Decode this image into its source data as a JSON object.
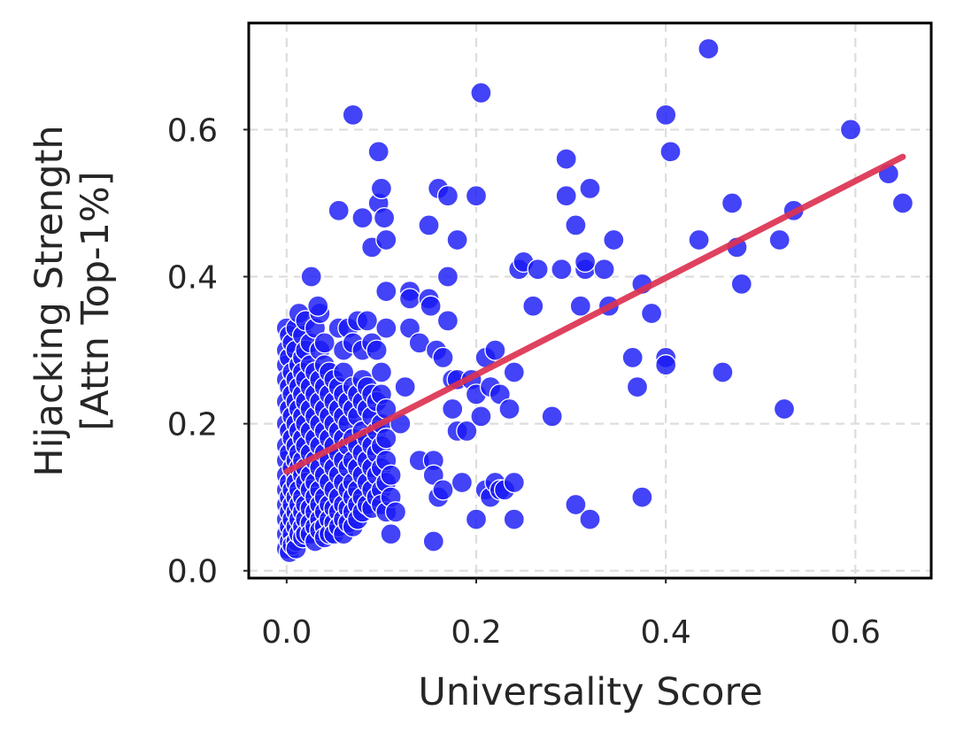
{
  "chart_data": {
    "type": "scatter",
    "xlabel": "Universality Score",
    "ylabel_lines": [
      "Hijacking Strength",
      "[Attn Top-1%]"
    ],
    "xlim": [
      -0.04,
      0.68
    ],
    "ylim": [
      -0.01,
      0.745
    ],
    "xticks": [
      0.0,
      0.2,
      0.4,
      0.6
    ],
    "xtick_labels": [
      "0.0",
      "0.2",
      "0.4",
      "0.6"
    ],
    "yticks": [
      0.0,
      0.2,
      0.4,
      0.6
    ],
    "ytick_labels": [
      "0.0",
      "0.2",
      "0.4",
      "0.6"
    ],
    "grid": true,
    "colors": {
      "points": "#1a1af5",
      "trend": "#dc3250",
      "grid": "#dddddd",
      "frame": "#000000"
    },
    "trendline": {
      "x": [
        0.0,
        0.65
      ],
      "y": [
        0.135,
        0.563
      ]
    },
    "points": [
      [
        0.0,
        0.33
      ],
      [
        0.0,
        0.3
      ],
      [
        0.0,
        0.28
      ],
      [
        0.0,
        0.26
      ],
      [
        0.0,
        0.23
      ],
      [
        0.0,
        0.2
      ],
      [
        0.0,
        0.17
      ],
      [
        0.0,
        0.15
      ],
      [
        0.0,
        0.13
      ],
      [
        0.0,
        0.11
      ],
      [
        0.0,
        0.09
      ],
      [
        0.0,
        0.07
      ],
      [
        0.0,
        0.05
      ],
      [
        0.0,
        0.03
      ],
      [
        0.003,
        0.32
      ],
      [
        0.003,
        0.29
      ],
      [
        0.003,
        0.25
      ],
      [
        0.003,
        0.22
      ],
      [
        0.003,
        0.19
      ],
      [
        0.003,
        0.16
      ],
      [
        0.003,
        0.12
      ],
      [
        0.003,
        0.1
      ],
      [
        0.003,
        0.08
      ],
      [
        0.003,
        0.06
      ],
      [
        0.003,
        0.04
      ],
      [
        0.003,
        0.025
      ],
      [
        0.006,
        0.31
      ],
      [
        0.006,
        0.27
      ],
      [
        0.006,
        0.24
      ],
      [
        0.006,
        0.21
      ],
      [
        0.006,
        0.18
      ],
      [
        0.006,
        0.14
      ],
      [
        0.006,
        0.11
      ],
      [
        0.006,
        0.09
      ],
      [
        0.006,
        0.07
      ],
      [
        0.006,
        0.05
      ],
      [
        0.006,
        0.035
      ],
      [
        0.01,
        0.33
      ],
      [
        0.01,
        0.3
      ],
      [
        0.01,
        0.26
      ],
      [
        0.01,
        0.23
      ],
      [
        0.01,
        0.2
      ],
      [
        0.01,
        0.17
      ],
      [
        0.01,
        0.15
      ],
      [
        0.01,
        0.13
      ],
      [
        0.01,
        0.12
      ],
      [
        0.01,
        0.1
      ],
      [
        0.01,
        0.08
      ],
      [
        0.01,
        0.06
      ],
      [
        0.01,
        0.04
      ],
      [
        0.01,
        0.03
      ],
      [
        0.013,
        0.35
      ],
      [
        0.013,
        0.28
      ],
      [
        0.013,
        0.25
      ],
      [
        0.013,
        0.22
      ],
      [
        0.013,
        0.19
      ],
      [
        0.013,
        0.16
      ],
      [
        0.013,
        0.14
      ],
      [
        0.013,
        0.11
      ],
      [
        0.013,
        0.09
      ],
      [
        0.013,
        0.07
      ],
      [
        0.013,
        0.05
      ],
      [
        0.017,
        0.32
      ],
      [
        0.017,
        0.29
      ],
      [
        0.017,
        0.27
      ],
      [
        0.017,
        0.24
      ],
      [
        0.017,
        0.21
      ],
      [
        0.017,
        0.18
      ],
      [
        0.017,
        0.15
      ],
      [
        0.017,
        0.13
      ],
      [
        0.017,
        0.1
      ],
      [
        0.017,
        0.08
      ],
      [
        0.017,
        0.06
      ],
      [
        0.017,
        0.045
      ],
      [
        0.02,
        0.34
      ],
      [
        0.02,
        0.3
      ],
      [
        0.02,
        0.26
      ],
      [
        0.02,
        0.23
      ],
      [
        0.02,
        0.2
      ],
      [
        0.02,
        0.17
      ],
      [
        0.02,
        0.14
      ],
      [
        0.02,
        0.12
      ],
      [
        0.02,
        0.09
      ],
      [
        0.02,
        0.07
      ],
      [
        0.02,
        0.05
      ],
      [
        0.025,
        0.31
      ],
      [
        0.025,
        0.28
      ],
      [
        0.025,
        0.25
      ],
      [
        0.025,
        0.22
      ],
      [
        0.025,
        0.19
      ],
      [
        0.025,
        0.16
      ],
      [
        0.025,
        0.13
      ],
      [
        0.025,
        0.11
      ],
      [
        0.025,
        0.085
      ],
      [
        0.025,
        0.065
      ],
      [
        0.025,
        0.05
      ],
      [
        0.03,
        0.33
      ],
      [
        0.03,
        0.27
      ],
      [
        0.03,
        0.24
      ],
      [
        0.03,
        0.21
      ],
      [
        0.03,
        0.18
      ],
      [
        0.03,
        0.15
      ],
      [
        0.03,
        0.12
      ],
      [
        0.03,
        0.1
      ],
      [
        0.03,
        0.08
      ],
      [
        0.03,
        0.06
      ],
      [
        0.03,
        0.04
      ],
      [
        0.035,
        0.35
      ],
      [
        0.035,
        0.3
      ],
      [
        0.035,
        0.26
      ],
      [
        0.035,
        0.23
      ],
      [
        0.035,
        0.2
      ],
      [
        0.035,
        0.17
      ],
      [
        0.035,
        0.14
      ],
      [
        0.035,
        0.11
      ],
      [
        0.035,
        0.09
      ],
      [
        0.035,
        0.07
      ],
      [
        0.035,
        0.055
      ],
      [
        0.04,
        0.31
      ],
      [
        0.04,
        0.28
      ],
      [
        0.04,
        0.25
      ],
      [
        0.04,
        0.22
      ],
      [
        0.04,
        0.19
      ],
      [
        0.04,
        0.16
      ],
      [
        0.04,
        0.13
      ],
      [
        0.04,
        0.1
      ],
      [
        0.04,
        0.08
      ],
      [
        0.04,
        0.06
      ],
      [
        0.04,
        0.045
      ],
      [
        0.045,
        0.27
      ],
      [
        0.045,
        0.24
      ],
      [
        0.045,
        0.21
      ],
      [
        0.045,
        0.18
      ],
      [
        0.045,
        0.15
      ],
      [
        0.045,
        0.12
      ],
      [
        0.045,
        0.09
      ],
      [
        0.045,
        0.07
      ],
      [
        0.045,
        0.05
      ],
      [
        0.05,
        0.26
      ],
      [
        0.05,
        0.23
      ],
      [
        0.05,
        0.2
      ],
      [
        0.05,
        0.17
      ],
      [
        0.05,
        0.14
      ],
      [
        0.05,
        0.11
      ],
      [
        0.05,
        0.085
      ],
      [
        0.05,
        0.065
      ],
      [
        0.05,
        0.05
      ],
      [
        0.055,
        0.33
      ],
      [
        0.055,
        0.25
      ],
      [
        0.055,
        0.22
      ],
      [
        0.055,
        0.19
      ],
      [
        0.055,
        0.16
      ],
      [
        0.055,
        0.13
      ],
      [
        0.055,
        0.1
      ],
      [
        0.055,
        0.08
      ],
      [
        0.055,
        0.06
      ],
      [
        0.06,
        0.3
      ],
      [
        0.06,
        0.27
      ],
      [
        0.06,
        0.24
      ],
      [
        0.06,
        0.21
      ],
      [
        0.06,
        0.18
      ],
      [
        0.06,
        0.15
      ],
      [
        0.06,
        0.12
      ],
      [
        0.06,
        0.09
      ],
      [
        0.06,
        0.07
      ],
      [
        0.06,
        0.05
      ],
      [
        0.065,
        0.33
      ],
      [
        0.065,
        0.23
      ],
      [
        0.065,
        0.2
      ],
      [
        0.065,
        0.17
      ],
      [
        0.065,
        0.14
      ],
      [
        0.065,
        0.11
      ],
      [
        0.065,
        0.085
      ],
      [
        0.065,
        0.065
      ],
      [
        0.07,
        0.31
      ],
      [
        0.07,
        0.25
      ],
      [
        0.07,
        0.22
      ],
      [
        0.07,
        0.18
      ],
      [
        0.07,
        0.15
      ],
      [
        0.07,
        0.12
      ],
      [
        0.07,
        0.1
      ],
      [
        0.07,
        0.08
      ],
      [
        0.07,
        0.06
      ],
      [
        0.075,
        0.34
      ],
      [
        0.075,
        0.24
      ],
      [
        0.075,
        0.21
      ],
      [
        0.075,
        0.17
      ],
      [
        0.075,
        0.14
      ],
      [
        0.075,
        0.11
      ],
      [
        0.075,
        0.09
      ],
      [
        0.075,
        0.07
      ],
      [
        0.08,
        0.3
      ],
      [
        0.08,
        0.26
      ],
      [
        0.08,
        0.23
      ],
      [
        0.08,
        0.19
      ],
      [
        0.08,
        0.16
      ],
      [
        0.08,
        0.13
      ],
      [
        0.08,
        0.1
      ],
      [
        0.08,
        0.08
      ],
      [
        0.085,
        0.34
      ],
      [
        0.085,
        0.25
      ],
      [
        0.085,
        0.22
      ],
      [
        0.085,
        0.18
      ],
      [
        0.085,
        0.15
      ],
      [
        0.085,
        0.12
      ],
      [
        0.085,
        0.09
      ],
      [
        0.09,
        0.31
      ],
      [
        0.09,
        0.24
      ],
      [
        0.09,
        0.21
      ],
      [
        0.09,
        0.17
      ],
      [
        0.09,
        0.14
      ],
      [
        0.09,
        0.11
      ],
      [
        0.09,
        0.085
      ],
      [
        0.095,
        0.3
      ],
      [
        0.095,
        0.23
      ],
      [
        0.095,
        0.19
      ],
      [
        0.095,
        0.16
      ],
      [
        0.095,
        0.13
      ],
      [
        0.095,
        0.1
      ],
      [
        0.1,
        0.27
      ],
      [
        0.1,
        0.24
      ],
      [
        0.1,
        0.2
      ],
      [
        0.1,
        0.17
      ],
      [
        0.1,
        0.14
      ],
      [
        0.1,
        0.11
      ],
      [
        0.1,
        0.09
      ],
      [
        0.105,
        0.33
      ],
      [
        0.105,
        0.22
      ],
      [
        0.105,
        0.18
      ],
      [
        0.105,
        0.15
      ],
      [
        0.105,
        0.12
      ],
      [
        0.105,
        0.08
      ],
      [
        0.11,
        0.1
      ],
      [
        0.11,
        0.13
      ],
      [
        0.115,
        0.08
      ],
      [
        0.026,
        0.4
      ],
      [
        0.033,
        0.36
      ],
      [
        0.055,
        0.49
      ],
      [
        0.07,
        0.62
      ],
      [
        0.08,
        0.48
      ],
      [
        0.09,
        0.44
      ],
      [
        0.097,
        0.57
      ],
      [
        0.097,
        0.5
      ],
      [
        0.1,
        0.52
      ],
      [
        0.103,
        0.48
      ],
      [
        0.105,
        0.45
      ],
      [
        0.105,
        0.38
      ],
      [
        0.11,
        0.05
      ],
      [
        0.12,
        0.2
      ],
      [
        0.125,
        0.25
      ],
      [
        0.13,
        0.38
      ],
      [
        0.13,
        0.37
      ],
      [
        0.13,
        0.33
      ],
      [
        0.14,
        0.31
      ],
      [
        0.14,
        0.15
      ],
      [
        0.15,
        0.47
      ],
      [
        0.15,
        0.37
      ],
      [
        0.152,
        0.36
      ],
      [
        0.155,
        0.15
      ],
      [
        0.155,
        0.13
      ],
      [
        0.155,
        0.04
      ],
      [
        0.158,
        0.3
      ],
      [
        0.16,
        0.52
      ],
      [
        0.16,
        0.1
      ],
      [
        0.165,
        0.29
      ],
      [
        0.165,
        0.11
      ],
      [
        0.17,
        0.51
      ],
      [
        0.17,
        0.4
      ],
      [
        0.17,
        0.34
      ],
      [
        0.175,
        0.26
      ],
      [
        0.175,
        0.22
      ],
      [
        0.18,
        0.45
      ],
      [
        0.18,
        0.26
      ],
      [
        0.18,
        0.19
      ],
      [
        0.185,
        0.12
      ],
      [
        0.19,
        0.19
      ],
      [
        0.195,
        0.26
      ],
      [
        0.2,
        0.51
      ],
      [
        0.2,
        0.24
      ],
      [
        0.2,
        0.07
      ],
      [
        0.205,
        0.65
      ],
      [
        0.205,
        0.21
      ],
      [
        0.21,
        0.29
      ],
      [
        0.21,
        0.11
      ],
      [
        0.215,
        0.25
      ],
      [
        0.215,
        0.1
      ],
      [
        0.22,
        0.3
      ],
      [
        0.22,
        0.12
      ],
      [
        0.225,
        0.24
      ],
      [
        0.225,
        0.11
      ],
      [
        0.23,
        0.11
      ],
      [
        0.235,
        0.22
      ],
      [
        0.24,
        0.27
      ],
      [
        0.24,
        0.12
      ],
      [
        0.24,
        0.07
      ],
      [
        0.245,
        0.41
      ],
      [
        0.25,
        0.42
      ],
      [
        0.26,
        0.36
      ],
      [
        0.265,
        0.41
      ],
      [
        0.28,
        0.21
      ],
      [
        0.29,
        0.41
      ],
      [
        0.295,
        0.56
      ],
      [
        0.295,
        0.51
      ],
      [
        0.305,
        0.47
      ],
      [
        0.305,
        0.09
      ],
      [
        0.31,
        0.36
      ],
      [
        0.315,
        0.41
      ],
      [
        0.315,
        0.42
      ],
      [
        0.32,
        0.52
      ],
      [
        0.32,
        0.07
      ],
      [
        0.335,
        0.41
      ],
      [
        0.34,
        0.36
      ],
      [
        0.345,
        0.45
      ],
      [
        0.365,
        0.29
      ],
      [
        0.37,
        0.25
      ],
      [
        0.375,
        0.39
      ],
      [
        0.375,
        0.1
      ],
      [
        0.385,
        0.35
      ],
      [
        0.4,
        0.62
      ],
      [
        0.4,
        0.29
      ],
      [
        0.4,
        0.28
      ],
      [
        0.405,
        0.57
      ],
      [
        0.435,
        0.45
      ],
      [
        0.445,
        0.71
      ],
      [
        0.46,
        0.27
      ],
      [
        0.47,
        0.5
      ],
      [
        0.475,
        0.44
      ],
      [
        0.48,
        0.39
      ],
      [
        0.52,
        0.45
      ],
      [
        0.525,
        0.22
      ],
      [
        0.535,
        0.49
      ],
      [
        0.595,
        0.6
      ],
      [
        0.635,
        0.54
      ],
      [
        0.65,
        0.5
      ]
    ]
  }
}
